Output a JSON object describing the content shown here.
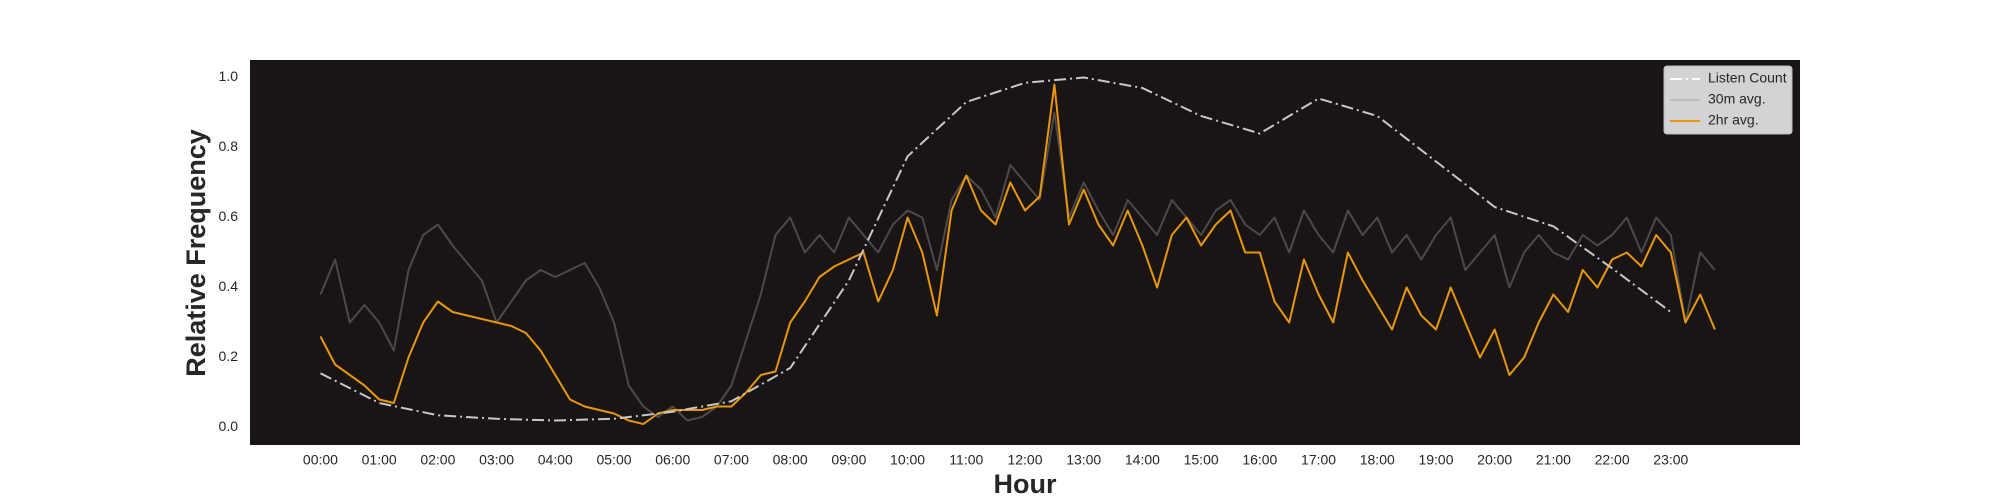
{
  "chart_data": {
    "type": "line",
    "xlabel": "Hour",
    "ylabel": "Relative Frequency",
    "xlim": [
      -1.2,
      25.2
    ],
    "ylim": [
      -0.05,
      1.05
    ],
    "xticks": [
      {
        "value": 0,
        "label": "00:00"
      },
      {
        "value": 1,
        "label": "01:00"
      },
      {
        "value": 2,
        "label": "02:00"
      },
      {
        "value": 3,
        "label": "03:00"
      },
      {
        "value": 4,
        "label": "04:00"
      },
      {
        "value": 5,
        "label": "05:00"
      },
      {
        "value": 6,
        "label": "06:00"
      },
      {
        "value": 7,
        "label": "07:00"
      },
      {
        "value": 8,
        "label": "08:00"
      },
      {
        "value": 9,
        "label": "09:00"
      },
      {
        "value": 10,
        "label": "10:00"
      },
      {
        "value": 11,
        "label": "11:00"
      },
      {
        "value": 12,
        "label": "12:00"
      },
      {
        "value": 13,
        "label": "13:00"
      },
      {
        "value": 14,
        "label": "14:00"
      },
      {
        "value": 15,
        "label": "15:00"
      },
      {
        "value": 16,
        "label": "16:00"
      },
      {
        "value": 17,
        "label": "17:00"
      },
      {
        "value": 18,
        "label": "18:00"
      },
      {
        "value": 19,
        "label": "19:00"
      },
      {
        "value": 20,
        "label": "20:00"
      },
      {
        "value": 21,
        "label": "21:00"
      },
      {
        "value": 22,
        "label": "22:00"
      },
      {
        "value": 23,
        "label": "23:00"
      }
    ],
    "yticks": [
      {
        "value": 0,
        "label": "0.0"
      },
      0.2,
      0.4,
      0.6,
      0.8,
      {
        "value": 1,
        "label": "1.0"
      }
    ],
    "grid": false,
    "legend": "upper right",
    "background": "#191514",
    "series": [
      {
        "name": "Listen Count",
        "color": "#c8c8c8",
        "linestyle": "dashdot",
        "x": [
          0,
          1,
          2,
          3,
          4,
          5,
          6,
          7,
          8,
          9,
          10,
          11,
          12,
          13,
          14,
          15,
          16,
          17,
          18,
          19,
          20,
          21,
          22,
          23
        ],
        "values": [
          0.155,
          0.07,
          0.035,
          0.025,
          0.02,
          0.025,
          0.045,
          0.075,
          0.17,
          0.42,
          0.775,
          0.93,
          0.985,
          1.0,
          0.97,
          0.89,
          0.84,
          0.94,
          0.89,
          0.76,
          0.63,
          0.575,
          0.455,
          0.33
        ]
      },
      {
        "name": "30m avg.",
        "color": "#4e4949",
        "linestyle": "solid",
        "x": [
          0,
          0.25,
          0.5,
          0.75,
          1,
          1.25,
          1.5,
          1.75,
          2,
          2.25,
          2.5,
          2.75,
          3,
          3.25,
          3.5,
          3.75,
          4,
          4.25,
          4.5,
          4.75,
          5,
          5.25,
          5.5,
          5.75,
          6,
          6.25,
          6.5,
          6.75,
          7,
          7.25,
          7.5,
          7.75,
          8,
          8.25,
          8.5,
          8.75,
          9,
          9.25,
          9.5,
          9.75,
          10,
          10.25,
          10.5,
          10.75,
          11,
          11.25,
          11.5,
          11.75,
          12,
          12.25,
          12.5,
          12.75,
          13,
          13.25,
          13.5,
          13.75,
          14,
          14.25,
          14.5,
          14.75,
          15,
          15.25,
          15.5,
          15.75,
          16,
          16.25,
          16.5,
          16.75,
          17,
          17.25,
          17.5,
          17.75,
          18,
          18.25,
          18.5,
          18.75,
          19,
          19.25,
          19.5,
          19.75,
          20,
          20.25,
          20.5,
          20.75,
          21,
          21.25,
          21.5,
          21.75,
          22,
          22.25,
          22.5,
          22.75,
          23,
          23.25,
          23.5,
          23.75
        ],
        "values": [
          0.38,
          0.48,
          0.3,
          0.35,
          0.3,
          0.22,
          0.45,
          0.55,
          0.58,
          0.52,
          0.47,
          0.42,
          0.3,
          0.36,
          0.42,
          0.45,
          0.43,
          0.45,
          0.47,
          0.4,
          0.3,
          0.12,
          0.06,
          0.03,
          0.06,
          0.02,
          0.03,
          0.06,
          0.12,
          0.25,
          0.38,
          0.55,
          0.6,
          0.5,
          0.55,
          0.5,
          0.6,
          0.55,
          0.5,
          0.58,
          0.62,
          0.6,
          0.45,
          0.65,
          0.72,
          0.68,
          0.6,
          0.75,
          0.7,
          0.65,
          0.9,
          0.6,
          0.7,
          0.62,
          0.55,
          0.65,
          0.6,
          0.55,
          0.65,
          0.6,
          0.55,
          0.62,
          0.65,
          0.58,
          0.55,
          0.6,
          0.5,
          0.62,
          0.55,
          0.5,
          0.62,
          0.55,
          0.6,
          0.5,
          0.55,
          0.48,
          0.55,
          0.6,
          0.45,
          0.5,
          0.55,
          0.4,
          0.5,
          0.55,
          0.5,
          0.48,
          0.55,
          0.52,
          0.55,
          0.6,
          0.5,
          0.6,
          0.55,
          0.3,
          0.5,
          0.45
        ]
      },
      {
        "name": "2hr avg.",
        "color": "#e8960c",
        "linestyle": "solid",
        "x": [
          0,
          0.25,
          0.5,
          0.75,
          1,
          1.25,
          1.5,
          1.75,
          2,
          2.25,
          2.5,
          2.75,
          3,
          3.25,
          3.5,
          3.75,
          4,
          4.25,
          4.5,
          4.75,
          5,
          5.25,
          5.5,
          5.75,
          6,
          6.25,
          6.5,
          6.75,
          7,
          7.25,
          7.5,
          7.75,
          8,
          8.25,
          8.5,
          8.75,
          9,
          9.25,
          9.5,
          9.75,
          10,
          10.25,
          10.5,
          10.75,
          11,
          11.25,
          11.5,
          11.75,
          12,
          12.25,
          12.5,
          12.75,
          13,
          13.25,
          13.5,
          13.75,
          14,
          14.25,
          14.5,
          14.75,
          15,
          15.25,
          15.5,
          15.75,
          16,
          16.25,
          16.5,
          16.75,
          17,
          17.25,
          17.5,
          17.75,
          18,
          18.25,
          18.5,
          18.75,
          19,
          19.25,
          19.5,
          19.75,
          20,
          20.25,
          20.5,
          20.75,
          21,
          21.25,
          21.5,
          21.75,
          22,
          22.25,
          22.5,
          22.75,
          23,
          23.25,
          23.5,
          23.75
        ],
        "values": [
          0.26,
          0.18,
          0.15,
          0.12,
          0.08,
          0.07,
          0.2,
          0.3,
          0.36,
          0.33,
          0.32,
          0.31,
          0.3,
          0.29,
          0.27,
          0.22,
          0.15,
          0.08,
          0.06,
          0.05,
          0.04,
          0.02,
          0.01,
          0.04,
          0.05,
          0.05,
          0.05,
          0.06,
          0.06,
          0.1,
          0.15,
          0.16,
          0.3,
          0.36,
          0.43,
          0.46,
          0.48,
          0.5,
          0.36,
          0.45,
          0.6,
          0.5,
          0.32,
          0.62,
          0.72,
          0.62,
          0.58,
          0.7,
          0.62,
          0.66,
          0.98,
          0.58,
          0.68,
          0.58,
          0.52,
          0.62,
          0.52,
          0.4,
          0.55,
          0.6,
          0.52,
          0.58,
          0.62,
          0.5,
          0.5,
          0.36,
          0.3,
          0.48,
          0.38,
          0.3,
          0.5,
          0.42,
          0.35,
          0.28,
          0.4,
          0.32,
          0.28,
          0.4,
          0.3,
          0.2,
          0.28,
          0.15,
          0.2,
          0.3,
          0.38,
          0.33,
          0.45,
          0.4,
          0.48,
          0.5,
          0.46,
          0.55,
          0.5,
          0.3,
          0.38,
          0.28
        ]
      }
    ]
  }
}
